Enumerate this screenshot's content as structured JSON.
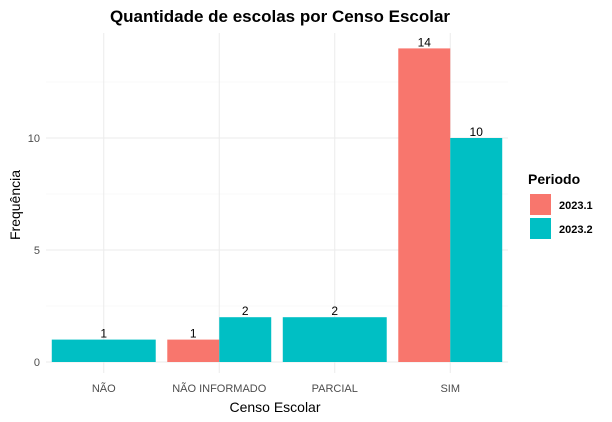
{
  "chart_data": {
    "type": "bar",
    "title": "Quantidade de escolas  por Censo Escolar",
    "xlabel": "Censo Escolar",
    "ylabel": "Frequência",
    "categories": [
      "NÃO",
      "NÃO INFORMADO",
      "PARCIAL",
      "SIM"
    ],
    "ylim": [
      0,
      15
    ],
    "yticks": [
      0,
      5,
      10
    ],
    "grid": true,
    "legend": {
      "title": "Periodo",
      "placement": "right"
    },
    "series": [
      {
        "name": "2023.1",
        "color": "#F8766D",
        "values": [
          null,
          1,
          null,
          14
        ]
      },
      {
        "name": "2023.2",
        "color": "#00BFC4",
        "values": [
          1,
          2,
          2,
          10
        ]
      }
    ]
  }
}
